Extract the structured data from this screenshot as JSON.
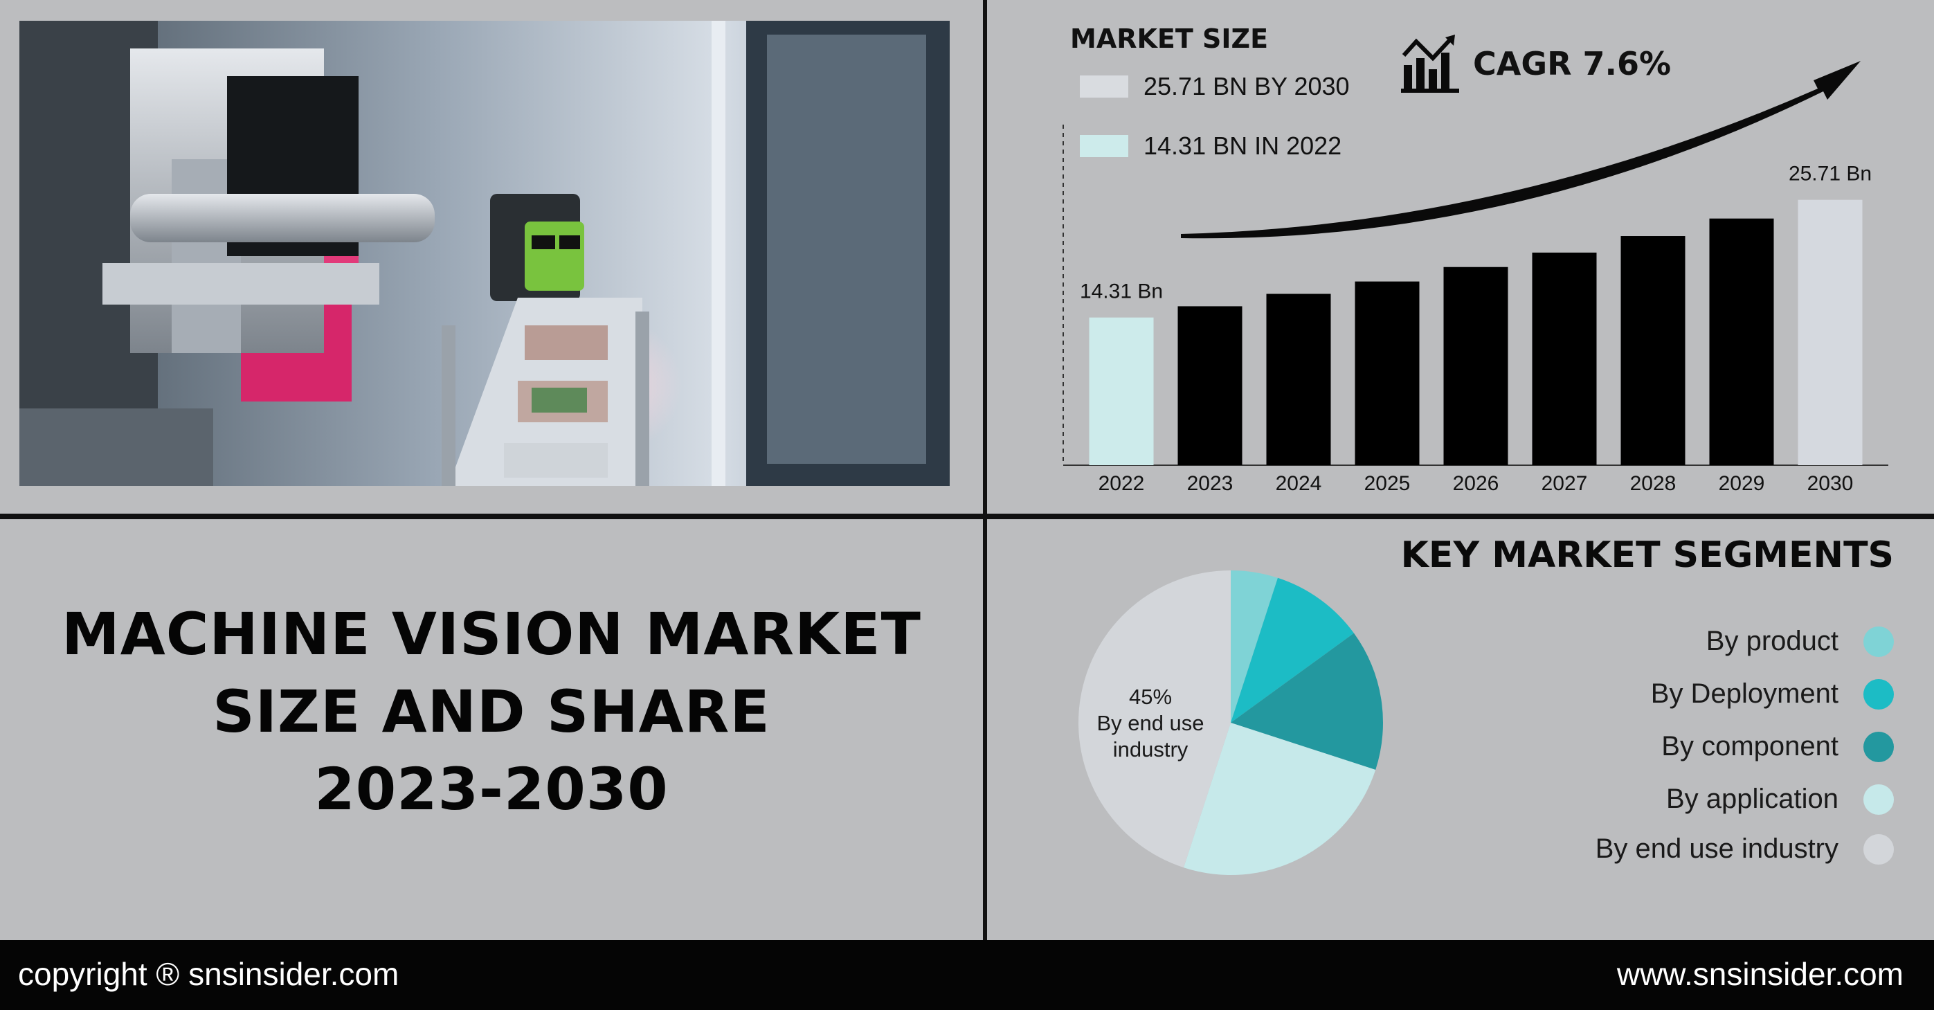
{
  "colors": {
    "background": "#bcbdbf",
    "bar_2022": "#cdebeb",
    "bar_middle": "#000000",
    "bar_2030": "#d5d9df",
    "footer": "#050505",
    "arrow": "#0a0a0a"
  },
  "title_lines": [
    "MACHINE VISION MARKET",
    "SIZE AND SHARE",
    "2023-2030"
  ],
  "market": {
    "heading": "MARKET SIZE",
    "legend": [
      {
        "text": "25.71 BN BY 2030",
        "color": "#d9dce0"
      },
      {
        "text": "14.31 BN IN 2022",
        "color": "#cdebeb"
      }
    ],
    "cagr_icon": "growth-chart-icon",
    "cagr": "CAGR 7.6%"
  },
  "chart_data": [
    {
      "type": "bar",
      "categories": [
        "2022",
        "2023",
        "2024",
        "2025",
        "2026",
        "2027",
        "2028",
        "2029",
        "2030"
      ],
      "values": [
        14.31,
        15.4,
        16.6,
        17.8,
        19.2,
        20.6,
        22.2,
        23.9,
        25.71
      ],
      "data_labels": {
        "2022": "14.31 Bn",
        "2030": "25.71 Bn"
      },
      "bar_colors": [
        "#cdebeb",
        "#000000",
        "#000000",
        "#000000",
        "#000000",
        "#000000",
        "#000000",
        "#000000",
        "#d5d9df"
      ],
      "ylim": [
        0,
        33
      ],
      "grid": false,
      "title": "",
      "xlabel": "",
      "ylabel": ""
    },
    {
      "type": "pie",
      "labels": [
        "By product",
        "By Deployment",
        "By component",
        "By application",
        "By end use industry"
      ],
      "values": [
        5,
        10,
        15,
        25,
        45
      ],
      "colors": [
        "#7fd3d6",
        "#1cbcc5",
        "#23989f",
        "#c6e9ea",
        "#d3d6da"
      ],
      "slice_label": {
        "percent": "45%",
        "text": "By end use industry"
      }
    }
  ],
  "segments": {
    "heading": "KEY MARKET SEGMENTS",
    "pie_label_pct": "45%",
    "pie_label_line1": "By end use",
    "pie_label_line2": "industry"
  },
  "footer": {
    "left": "copyright ® snsinsider.com",
    "right": "www.snsinsider.com"
  }
}
